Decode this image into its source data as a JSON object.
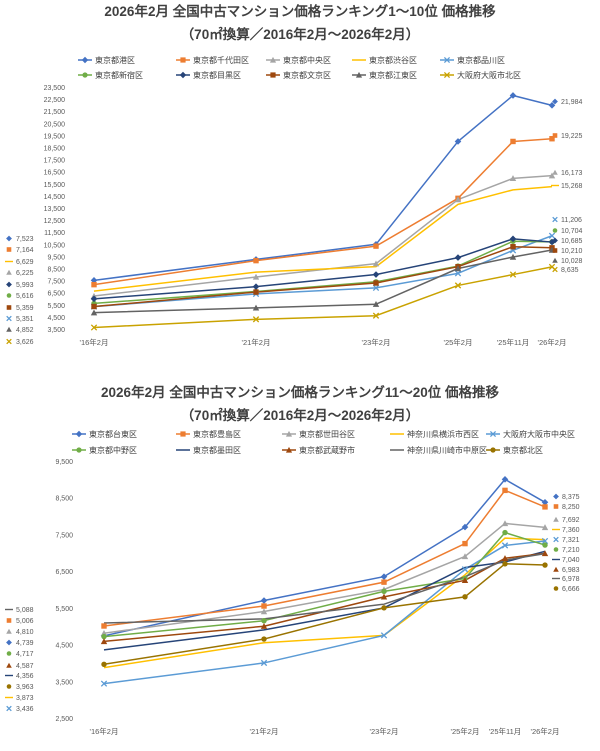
{
  "chart_data": [
    {
      "type": "line",
      "title": "2026年2月 全国中古マンション価格ランキング1～10位 価格推移",
      "subtitle": "（70㎡換算／2016年2月～2026年2月）",
      "xlabel": "",
      "ylabel": "",
      "x": [
        "'16年2月",
        "'21年2月",
        "'23年2月",
        "'25年2月",
        "'25年11月",
        "'26年2月"
      ],
      "yticks": [
        "3,500",
        "4,500",
        "5,500",
        "6,500",
        "7,500",
        "8,500",
        "9,500",
        "10,500",
        "11,500",
        "12,500",
        "13,500",
        "14,500",
        "15,500",
        "16,500",
        "17,500",
        "18,500",
        "19,500",
        "20,500",
        "21,500",
        "22,500",
        "23,500"
      ],
      "ylim": [
        3500,
        23500
      ],
      "grid": false,
      "legend": "top",
      "series": [
        {
          "name": "東京都港区",
          "color": "#4472C4",
          "marker": "diamond",
          "values": [
            7523,
            9250,
            10500,
            19000,
            22800,
            21984
          ],
          "start_label": "7,523",
          "end_label": "21,984"
        },
        {
          "name": "東京都千代田区",
          "color": "#ED7D31",
          "marker": "square",
          "values": [
            7164,
            9150,
            10350,
            14300,
            19000,
            19225
          ],
          "start_label": "7,164",
          "end_label": "19,225"
        },
        {
          "name": "東京都中央区",
          "color": "#A5A5A5",
          "marker": "triangle",
          "values": [
            6225,
            7800,
            8900,
            14200,
            15950,
            16173
          ],
          "start_label": "6,225",
          "end_label": "16,173"
        },
        {
          "name": "東京都渋谷区",
          "color": "#FFC000",
          "marker": "none",
          "values": [
            6629,
            8200,
            8650,
            13800,
            15000,
            15268
          ],
          "start_label": "6,629",
          "end_label": "15,268"
        },
        {
          "name": "東京都品川区",
          "color": "#5B9BD5",
          "marker": "x",
          "values": [
            5351,
            6400,
            6900,
            8100,
            10000,
            11206
          ],
          "start_label": "5,351",
          "end_label": "11,206"
        },
        {
          "name": "東京都新宿区",
          "color": "#70AD47",
          "marker": "circle",
          "values": [
            5616,
            6600,
            7400,
            8700,
            10750,
            10704
          ],
          "start_label": "5,616",
          "end_label": "10,704"
        },
        {
          "name": "東京都目黒区",
          "color": "#264478",
          "marker": "diamond",
          "values": [
            5993,
            7000,
            8000,
            9400,
            10950,
            10685
          ],
          "start_label": "5,993",
          "end_label": "10,685"
        },
        {
          "name": "東京都文京区",
          "color": "#9E480E",
          "marker": "square",
          "values": [
            5359,
            6550,
            7300,
            8650,
            10300,
            10210
          ],
          "start_label": "5,359",
          "end_label": "10,210"
        },
        {
          "name": "東京都江東区",
          "color": "#636363",
          "marker": "triangle",
          "values": [
            4852,
            5250,
            5550,
            8500,
            9450,
            10028
          ],
          "start_label": "4,852",
          "end_label": "10,028"
        },
        {
          "name": "大阪府大阪市北区",
          "color": "#C9A200",
          "marker": "x",
          "values": [
            3626,
            4300,
            4600,
            7100,
            8000,
            8635
          ],
          "start_label": "3,626",
          "end_label": "8,635"
        }
      ]
    },
    {
      "type": "line",
      "title": "2026年2月 全国中古マンション価格ランキング11～20位 価格推移",
      "subtitle": "（70㎡換算／2016年2月～2026年2月）",
      "xlabel": "",
      "ylabel": "",
      "x": [
        "'16年2月",
        "'21年2月",
        "'23年2月",
        "'25年2月",
        "'25年11月",
        "'26年2月"
      ],
      "yticks": [
        "2,500",
        "3,500",
        "4,500",
        "5,500",
        "6,500",
        "7,500",
        "8,500",
        "9,500"
      ],
      "ylim": [
        2500,
        9500
      ],
      "grid": false,
      "legend": "top",
      "series": [
        {
          "name": "東京都台東区",
          "color": "#4472C4",
          "marker": "diamond",
          "values": [
            4739,
            5700,
            6350,
            7700,
            9000,
            8375
          ],
          "start_label": "4,739",
          "end_label": "8,375"
        },
        {
          "name": "東京都豊島区",
          "color": "#ED7D31",
          "marker": "square",
          "values": [
            5006,
            5550,
            6200,
            7250,
            8700,
            8250
          ],
          "start_label": "5,006",
          "end_label": "8,250"
        },
        {
          "name": "東京都世田谷区",
          "color": "#A5A5A5",
          "marker": "triangle",
          "values": [
            4810,
            5400,
            6000,
            6900,
            7800,
            7692
          ],
          "start_label": "4,810",
          "end_label": "7,692"
        },
        {
          "name": "神奈川県横浜市西区",
          "color": "#FFC000",
          "marker": "none",
          "values": [
            3873,
            4550,
            4750,
            6400,
            7400,
            7360
          ],
          "start_label": "3,873",
          "end_label": "7,360"
        },
        {
          "name": "大阪府大阪市中央区",
          "color": "#5B9BD5",
          "marker": "x",
          "values": [
            3436,
            4000,
            4750,
            6550,
            7200,
            7321
          ],
          "start_label": "3,436",
          "end_label": "7,321"
        },
        {
          "name": "東京都中野区",
          "color": "#70AD47",
          "marker": "circle",
          "values": [
            4717,
            5150,
            5950,
            6300,
            7550,
            7210
          ],
          "start_label": "4,717",
          "end_label": "7,210"
        },
        {
          "name": "東京都墨田区",
          "color": "#264478",
          "marker": "none",
          "values": [
            4356,
            4900,
            5500,
            6600,
            6750,
            7040
          ],
          "start_label": "4,356",
          "end_label": "7,040"
        },
        {
          "name": "東京都武蔵野市",
          "color": "#9E480E",
          "marker": "triangle",
          "values": [
            4587,
            5000,
            5800,
            6250,
            6850,
            6983
          ],
          "start_label": "4,587",
          "end_label": "6,983"
        },
        {
          "name": "神奈川県川崎市中原区",
          "color": "#636363",
          "marker": "none",
          "values": [
            5088,
            5200,
            5600,
            6350,
            6800,
            6978
          ],
          "start_label": "5,088",
          "end_label": "6,978"
        },
        {
          "name": "東京都北区",
          "color": "#997300",
          "marker": "circle",
          "values": [
            3963,
            4650,
            5500,
            5800,
            6700,
            6666
          ],
          "start_label": "3,963",
          "end_label": "6,666"
        }
      ]
    }
  ]
}
